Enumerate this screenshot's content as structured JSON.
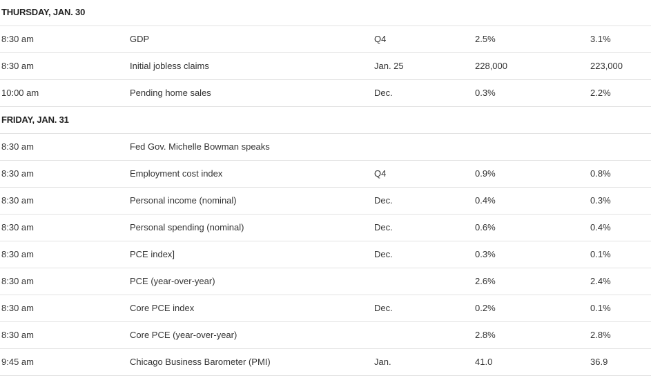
{
  "days": [
    {
      "label": "THURSDAY, JAN. 30",
      "rows": [
        {
          "time": "8:30 am",
          "event": "GDP",
          "period": "Q4",
          "value1": "2.5%",
          "value2": "3.1%"
        },
        {
          "time": "8:30 am",
          "event": "Initial jobless claims",
          "period": "Jan. 25",
          "value1": "228,000",
          "value2": "223,000"
        },
        {
          "time": "10:00 am",
          "event": "Pending home sales",
          "period": "Dec.",
          "value1": "0.3%",
          "value2": "2.2%"
        }
      ]
    },
    {
      "label": "FRIDAY, JAN. 31",
      "rows": [
        {
          "time": "8:30 am",
          "event": "Fed Gov. Michelle Bowman speaks",
          "period": "",
          "value1": "",
          "value2": ""
        },
        {
          "time": "8:30 am",
          "event": "Employment cost index",
          "period": "Q4",
          "value1": "0.9%",
          "value2": "0.8%"
        },
        {
          "time": "8:30 am",
          "event": "Personal income (nominal)",
          "period": "Dec.",
          "value1": "0.4%",
          "value2": "0.3%"
        },
        {
          "time": "8:30 am",
          "event": "Personal spending (nominal)",
          "period": "Dec.",
          "value1": "0.6%",
          "value2": "0.4%"
        },
        {
          "time": "8:30 am",
          "event": "PCE index]",
          "period": "Dec.",
          "value1": "0.3%",
          "value2": "0.1%"
        },
        {
          "time": "8:30 am",
          "event": "PCE (year-over-year)",
          "period": "",
          "value1": "2.6%",
          "value2": "2.4%"
        },
        {
          "time": "8:30 am",
          "event": "Core PCE index",
          "period": "Dec.",
          "value1": "0.2%",
          "value2": "0.1%"
        },
        {
          "time": "8:30 am",
          "event": "Core PCE (year-over-year)",
          "period": "",
          "value1": "2.8%",
          "value2": "2.8%"
        },
        {
          "time": "9:45 am",
          "event": "Chicago Business Barometer (PMI)",
          "period": "Jan.",
          "value1": "41.0",
          "value2": "36.9"
        }
      ]
    }
  ]
}
